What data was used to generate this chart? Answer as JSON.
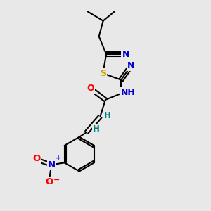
{
  "bg_color": "#e8e8e8",
  "bond_color": "#000000",
  "bond_width": 1.5,
  "atom_colors": {
    "C": "#000000",
    "N": "#0000cc",
    "O": "#ff0000",
    "S": "#ccaa00",
    "H": "#008080"
  },
  "font_size": 9,
  "fig_size": [
    3.0,
    3.0
  ],
  "dpi": 100,
  "xlim": [
    0,
    10
  ],
  "ylim": [
    0,
    10
  ]
}
